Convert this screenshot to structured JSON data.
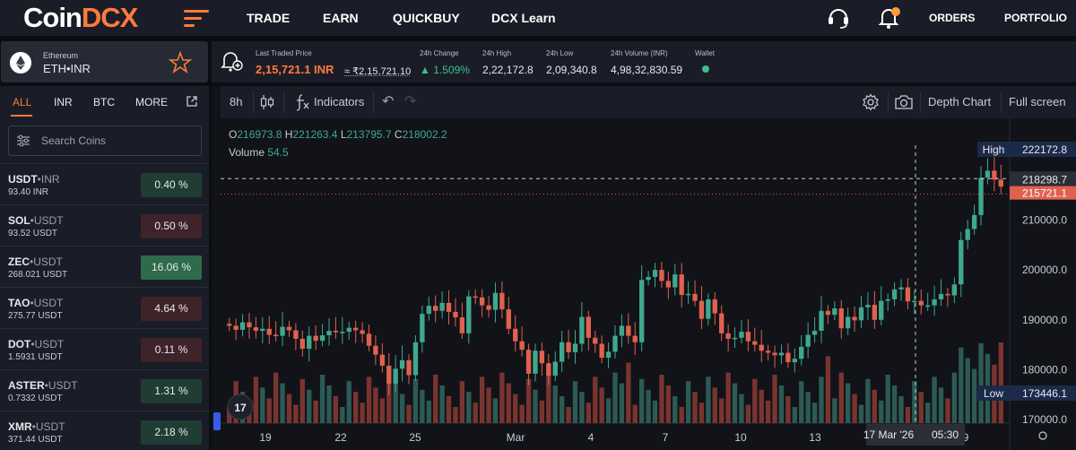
{
  "nav": {
    "logo_a": "Coin",
    "logo_b": "DCX",
    "links": [
      "TRADE",
      "EARN",
      "QUICKBUY",
      "DCX Learn"
    ],
    "right_links": [
      "ORDERS",
      "PORTFOLIO"
    ]
  },
  "pair": {
    "name": "Ethereum",
    "symbol": "ETH•INR"
  },
  "ticker": {
    "last_label": "Last Traded Price",
    "last_value": "2,15,721.1 INR",
    "approx": "≈ ₹2,15,721.10",
    "change_label": "24h Change",
    "change_value": "▲ 1.509%",
    "high_label": "24h High",
    "high_value": "2,22,172.8",
    "low_label": "24h Low",
    "low_value": "2,09,340.8",
    "volume_label": "24h Volume (INR)",
    "volume_value": "4,98,32,830.59",
    "wallet_label": "Wallet"
  },
  "sidebar": {
    "tabs": [
      "ALL",
      "INR",
      "BTC",
      "MORE"
    ],
    "search_placeholder": "Search Coins",
    "coins": [
      {
        "base": "USDT",
        "quote": "•INR",
        "price": "93.40 INR",
        "change": "0.40 %",
        "dir": "up"
      },
      {
        "base": "SOL",
        "quote": "•USDT",
        "price": "93.52 USDT",
        "change": "0.50 %",
        "dir": "dn"
      },
      {
        "base": "ZEC",
        "quote": "•USDT",
        "price": "268.021 USDT",
        "change": "16.06 %",
        "dir": "upstrong"
      },
      {
        "base": "TAO",
        "quote": "•USDT",
        "price": "275.77 USDT",
        "change": "4.64 %",
        "dir": "dn"
      },
      {
        "base": "DOT",
        "quote": "•USDT",
        "price": "1.5931 USDT",
        "change": "0.11 %",
        "dir": "dn"
      },
      {
        "base": "ASTER",
        "quote": "•USDT",
        "price": "0.7332 USDT",
        "change": "1.31 %",
        "dir": "up"
      },
      {
        "base": "XMR",
        "quote": "•USDT",
        "price": "371.44 USDT",
        "change": "2.18 %",
        "dir": "up"
      }
    ]
  },
  "toolbar": {
    "interval": "8h",
    "indicators": "Indicators",
    "depth_chart": "Depth Chart",
    "full_screen": "Full screen"
  },
  "legend": {
    "o": "O",
    "o_val": "216973.8",
    "h": "H",
    "h_val": "221263.4",
    "l": "L",
    "l_val": "213795.7",
    "c": "C",
    "c_val": "218002.2",
    "volume_label": "Volume",
    "volume_val": "54.5"
  },
  "chart_data": {
    "type": "candlestick",
    "y_ticks": [
      210000,
      200000,
      190000,
      180000,
      170000
    ],
    "y_tick_labels": [
      "210000.0",
      "200000.0",
      "190000.0",
      "180000.0",
      "170000.0"
    ],
    "ylim": [
      167500,
      225000
    ],
    "x_tick_labels": [
      "19",
      "22",
      "25",
      "Mar",
      "4",
      "7",
      "10",
      "13",
      "9"
    ],
    "high_label": "High",
    "high_value": "222172.8",
    "low_label": "Low",
    "low_value": "173446.1",
    "crosshair_price": "218298.7",
    "last_price": "215721.1",
    "crosshair_date": "17 Mar '26",
    "crosshair_time": "05:30",
    "colors": {
      "up": "#3fa88f",
      "down": "#e0614f",
      "vol_up": "#2c5a55",
      "vol_down": "#7a3430"
    }
  }
}
